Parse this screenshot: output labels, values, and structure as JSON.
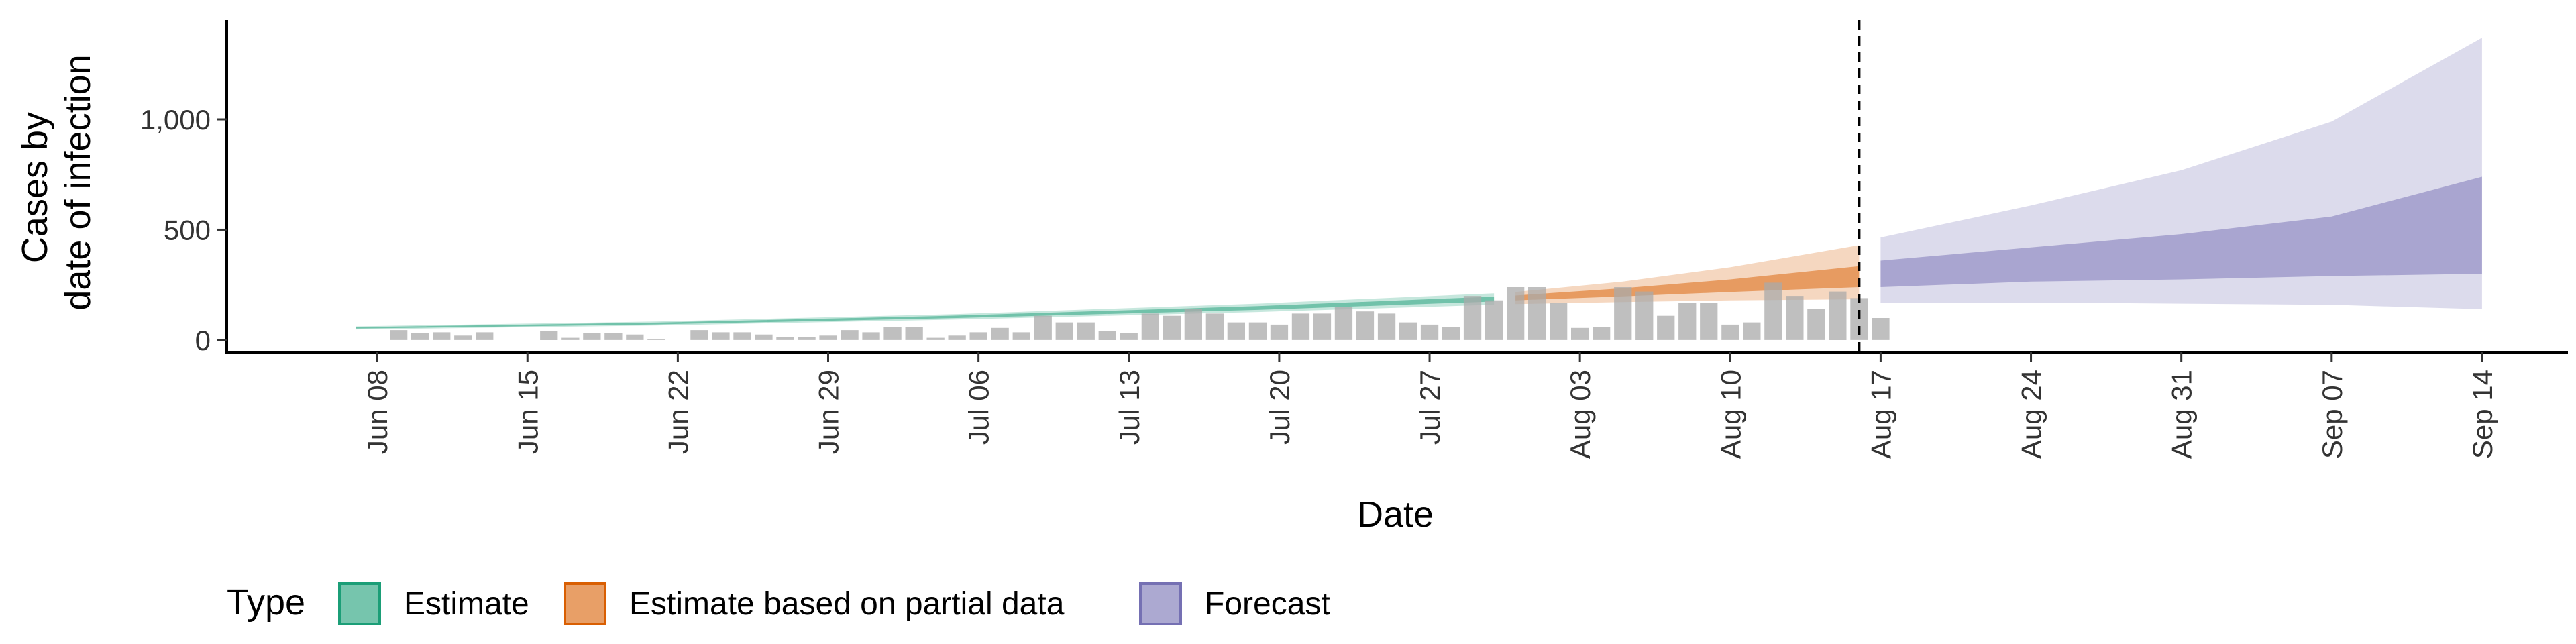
{
  "chart_data": {
    "type": "area",
    "xlabel": "Date",
    "ylabel_lines": [
      "Cases by",
      "date of infection"
    ],
    "x_range": [
      "2020-06-01",
      "2020-09-18"
    ],
    "ylim": [
      -55,
      1450
    ],
    "y_ticks": [
      {
        "value": 0,
        "label": "0"
      },
      {
        "value": 500,
        "label": "500"
      },
      {
        "value": 1000,
        "label": "1,000"
      }
    ],
    "x_ticks": [
      {
        "date": "2020-06-08",
        "label": "Jun 08"
      },
      {
        "date": "2020-06-15",
        "label": "Jun 15"
      },
      {
        "date": "2020-06-22",
        "label": "Jun 22"
      },
      {
        "date": "2020-06-29",
        "label": "Jun 29"
      },
      {
        "date": "2020-07-06",
        "label": "Jul 06"
      },
      {
        "date": "2020-07-13",
        "label": "Jul 13"
      },
      {
        "date": "2020-07-20",
        "label": "Jul 20"
      },
      {
        "date": "2020-07-27",
        "label": "Jul 27"
      },
      {
        "date": "2020-08-03",
        "label": "Aug 03"
      },
      {
        "date": "2020-08-10",
        "label": "Aug 10"
      },
      {
        "date": "2020-08-17",
        "label": "Aug 17"
      },
      {
        "date": "2020-08-24",
        "label": "Aug 24"
      },
      {
        "date": "2020-08-31",
        "label": "Aug 31"
      },
      {
        "date": "2020-09-07",
        "label": "Sep 07"
      },
      {
        "date": "2020-09-14",
        "label": "Sep 14"
      }
    ],
    "grid": false,
    "vline_date": "2020-08-16",
    "reported_cases": {
      "start_date": "2020-06-08",
      "values": [
        0,
        45,
        30,
        35,
        20,
        35,
        0,
        0,
        40,
        10,
        30,
        30,
        25,
        5,
        0,
        45,
        35,
        35,
        25,
        15,
        15,
        20,
        45,
        35,
        60,
        60,
        10,
        20,
        35,
        55,
        35,
        110,
        80,
        80,
        40,
        30,
        120,
        110,
        140,
        120,
        80,
        80,
        70,
        120,
        120,
        150,
        130,
        120,
        80,
        70,
        60,
        200,
        180,
        240,
        240,
        170,
        55,
        60,
        240,
        220,
        110,
        170,
        170,
        70,
        80,
        260,
        200,
        140,
        220,
        190,
        100
      ]
    },
    "series": [
      {
        "name": "Estimate",
        "color": "#1b9e77",
        "points": [
          {
            "date": "2020-06-07",
            "median": 55,
            "lower50": 52,
            "upper50": 58,
            "lower90": 48,
            "upper90": 62
          },
          {
            "date": "2020-06-21",
            "median": 75,
            "lower50": 71,
            "upper50": 79,
            "lower90": 66,
            "upper90": 84
          },
          {
            "date": "2020-07-05",
            "median": 105,
            "lower50": 100,
            "upper50": 111,
            "lower90": 93,
            "upper90": 118
          },
          {
            "date": "2020-07-19",
            "median": 145,
            "lower50": 137,
            "upper50": 154,
            "lower90": 127,
            "upper90": 165
          },
          {
            "date": "2020-07-30",
            "median": 185,
            "lower50": 175,
            "upper50": 197,
            "lower90": 160,
            "upper90": 212
          }
        ]
      },
      {
        "name": "Estimate based on partial data",
        "color": "#d95f02",
        "points": [
          {
            "date": "2020-07-31",
            "median": 190,
            "lower50": 180,
            "upper50": 202,
            "lower90": 163,
            "upper90": 218
          },
          {
            "date": "2020-08-05",
            "median": 215,
            "lower50": 198,
            "upper50": 235,
            "lower90": 172,
            "upper90": 265
          },
          {
            "date": "2020-08-10",
            "median": 245,
            "lower50": 218,
            "upper50": 275,
            "lower90": 180,
            "upper90": 330
          },
          {
            "date": "2020-08-16",
            "median": 285,
            "lower50": 240,
            "upper50": 335,
            "lower90": 185,
            "upper90": 430
          }
        ]
      },
      {
        "name": "Forecast",
        "color": "#7570b3",
        "points": [
          {
            "date": "2020-08-17",
            "median": 300,
            "lower50": 240,
            "upper50": 360,
            "lower90": 170,
            "upper90": 465
          },
          {
            "date": "2020-08-24",
            "median": 340,
            "lower50": 265,
            "upper50": 420,
            "lower90": 170,
            "upper90": 610
          },
          {
            "date": "2020-08-31",
            "median": 385,
            "lower50": 275,
            "upper50": 480,
            "lower90": 165,
            "upper90": 770
          },
          {
            "date": "2020-09-07",
            "median": 440,
            "lower50": 290,
            "upper50": 560,
            "lower90": 160,
            "upper90": 990
          },
          {
            "date": "2020-09-14",
            "median": 520,
            "lower50": 300,
            "upper50": 740,
            "lower90": 140,
            "upper90": 1370
          }
        ]
      }
    ],
    "legend": {
      "title": "Type",
      "position": "bottom",
      "items": [
        {
          "label": "Estimate",
          "color": "#1b9e77"
        },
        {
          "label": "Estimate based on partial data",
          "color": "#d95f02"
        },
        {
          "label": "Forecast",
          "color": "#7570b3"
        }
      ]
    }
  }
}
